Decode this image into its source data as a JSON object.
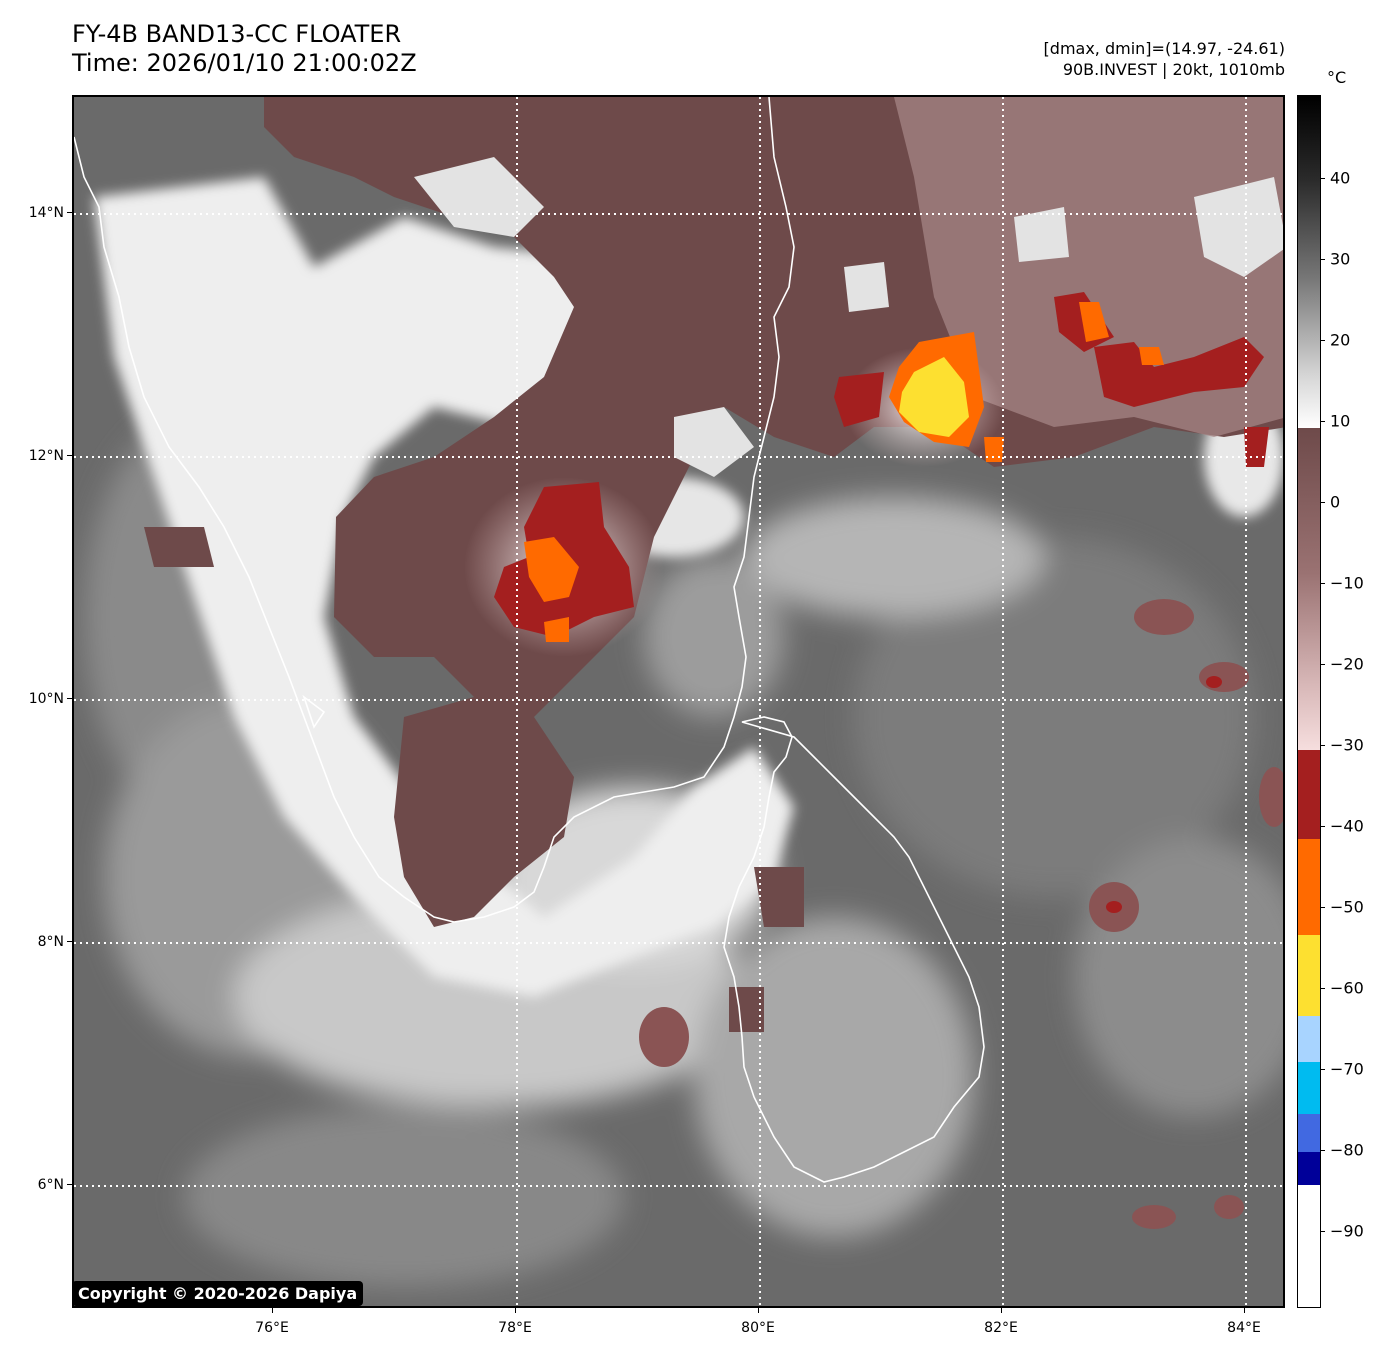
{
  "title": {
    "line1": "FY-4B BAND13-CC FLOATER",
    "line2": "Time: 2026/01/10 21:00:02Z"
  },
  "info": {
    "line1": "[dmax, dmin]=(14.97, -24.61)",
    "line2": "90B.INVEST | 20kt, 1010mb"
  },
  "map": {
    "lat_labels": [
      "14°N",
      "12°N",
      "10°N",
      "8°N",
      "6°N"
    ],
    "lon_labels": [
      "76°E",
      "78°E",
      "80°E",
      "82°E",
      "84°E"
    ],
    "gridlines": "dotted white",
    "ocean_color": "#6d6d6d",
    "coastline_color": "#ffffff"
  },
  "copyright": "Copyright © 2020-2026 Dapiya",
  "colorbar": {
    "unit": "°C",
    "tick_labels": [
      "40",
      "30",
      "20",
      "10",
      "0",
      "−10",
      "−20",
      "−30",
      "−40",
      "−50",
      "−60",
      "−70",
      "−80",
      "−90"
    ],
    "colors": {
      "warm_gray": "#6d6d6d",
      "cloud_white": "#f2f2f2",
      "cold_brown": "#6e4a4a",
      "pink": "#c9a3a3",
      "dark_red": "#a41f1f",
      "orange": "#ff6a00",
      "yellow": "#fde030",
      "light_blue": "#a8d4ff",
      "cyan": "#00bbf0",
      "blue": "#4169e1",
      "navy": "#000099"
    }
  }
}
